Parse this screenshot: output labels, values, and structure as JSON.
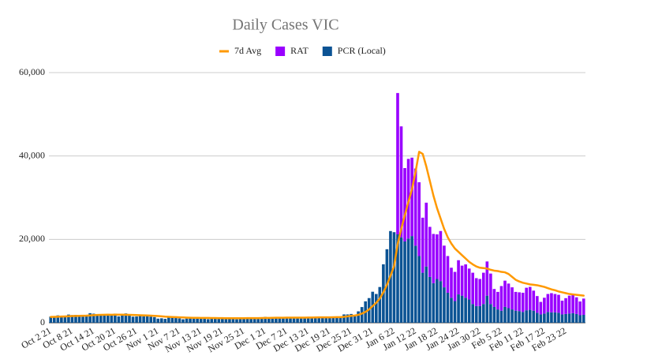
{
  "chart_data": {
    "type": "bar",
    "stacked": true,
    "title": "Daily Cases VIC",
    "categories": [
      "Oct 2 21",
      null,
      null,
      null,
      null,
      null,
      "Oct 8 21",
      null,
      null,
      null,
      null,
      null,
      "Oct 14 21",
      null,
      null,
      null,
      null,
      null,
      "Oct 20 21",
      null,
      null,
      null,
      null,
      null,
      "Oct 26 21",
      null,
      null,
      null,
      null,
      null,
      "Nov 1 21",
      null,
      null,
      null,
      null,
      null,
      "Nov 7 21",
      null,
      null,
      null,
      null,
      null,
      "Nov 13 21",
      null,
      null,
      null,
      null,
      null,
      "Nov 19 21",
      null,
      null,
      null,
      null,
      null,
      "Nov 25 21",
      null,
      null,
      null,
      null,
      null,
      "Dec 1 21",
      null,
      null,
      null,
      null,
      null,
      "Dec 7 21",
      null,
      null,
      null,
      null,
      null,
      "Dec 13 21",
      null,
      null,
      null,
      null,
      null,
      "Dec 19 21",
      null,
      null,
      null,
      null,
      null,
      "Dec 25 21",
      null,
      null,
      null,
      null,
      null,
      "Dec 31 21",
      null,
      null,
      null,
      null,
      null,
      "Jan 6 22",
      null,
      null,
      null,
      null,
      null,
      "Jan 12 22",
      null,
      null,
      null,
      null,
      null,
      "Jan 18 22",
      null,
      null,
      null,
      null,
      null,
      "Jan 24 22",
      null,
      null,
      null,
      null,
      null,
      "Jan 30 22",
      null,
      null,
      null,
      null,
      null,
      "Feb 5 22",
      null,
      null,
      null,
      null,
      null,
      "Feb 11 22",
      null,
      null,
      null,
      null,
      null,
      "Feb 17 22",
      null,
      null,
      null,
      null,
      null,
      "Feb 23 22",
      null,
      null,
      null,
      null,
      null
    ],
    "series": [
      {
        "name": "7d Avg",
        "type": "line",
        "color": "#ff9900",
        "values": [
          1400,
          1420,
          1450,
          1480,
          1520,
          1560,
          1600,
          1640,
          1660,
          1680,
          1700,
          1760,
          1820,
          1870,
          1900,
          1920,
          1930,
          1920,
          1950,
          1940,
          1930,
          1920,
          1900,
          1870,
          1840,
          1810,
          1780,
          1740,
          1700,
          1650,
          1600,
          1540,
          1470,
          1420,
          1380,
          1340,
          1300,
          1270,
          1240,
          1210,
          1190,
          1180,
          1170,
          1160,
          1150,
          1140,
          1130,
          1120,
          1110,
          1100,
          1100,
          1100,
          1090,
          1090,
          1100,
          1110,
          1120,
          1120,
          1120,
          1130,
          1150,
          1160,
          1180,
          1200,
          1210,
          1210,
          1220,
          1220,
          1230,
          1230,
          1240,
          1240,
          1250,
          1260,
          1270,
          1290,
          1300,
          1310,
          1310,
          1330,
          1340,
          1350,
          1430,
          1530,
          1650,
          1730,
          1900,
          2200,
          2600,
          3200,
          4000,
          4800,
          5800,
          7300,
          9100,
          11300,
          13600,
          18900,
          22500,
          25800,
          29000,
          32000,
          36200,
          41000,
          40500,
          37500,
          34000,
          30500,
          27500,
          25000,
          22500,
          20500,
          19000,
          17800,
          17000,
          16200,
          15400,
          14600,
          14000,
          13500,
          13200,
          13100,
          13000,
          12700,
          12500,
          12400,
          12200,
          12100,
          11700,
          11000,
          10300,
          9900,
          9600,
          9400,
          9200,
          9100,
          9000,
          8800,
          8600,
          8300,
          8000,
          7800,
          7500,
          7300,
          7100,
          6900,
          6800,
          6700,
          6600,
          6500
        ]
      },
      {
        "name": "RAT",
        "type": "bar",
        "color": "#9900ff",
        "values": [
          null,
          null,
          null,
          null,
          null,
          null,
          null,
          null,
          null,
          null,
          null,
          null,
          null,
          null,
          null,
          null,
          null,
          null,
          null,
          null,
          null,
          null,
          null,
          null,
          null,
          null,
          null,
          null,
          null,
          null,
          null,
          null,
          null,
          null,
          null,
          null,
          null,
          null,
          null,
          null,
          null,
          null,
          null,
          null,
          null,
          null,
          null,
          null,
          null,
          null,
          null,
          null,
          null,
          null,
          null,
          null,
          null,
          null,
          null,
          null,
          null,
          null,
          null,
          null,
          null,
          null,
          null,
          null,
          null,
          null,
          null,
          null,
          null,
          null,
          null,
          null,
          null,
          null,
          null,
          null,
          null,
          null,
          null,
          null,
          null,
          null,
          null,
          null,
          null,
          null,
          null,
          null,
          null,
          null,
          null,
          null,
          null,
          33900,
          26600,
          17600,
          19100,
          18800,
          18500,
          17700,
          13200,
          15300,
          12000,
          11800,
          10700,
          12000,
          10000,
          8800,
          7200,
          7000,
          8200,
          7200,
          8000,
          7400,
          7500,
          6700,
          6500,
          7500,
          8200,
          7300,
          4300,
          4200,
          5900,
          6300,
          5900,
          5300,
          4500,
          4500,
          4600,
          5400,
          5500,
          4800,
          4000,
          3000,
          3800,
          4300,
          4600,
          4400,
          4300,
          3300,
          3800,
          4300,
          4500,
          4000,
          3300,
          3900
        ]
      },
      {
        "name": "PCR (Local)",
        "type": "bar",
        "color": "#0b5394",
        "values": [
          1488,
          1377,
          1763,
          1420,
          1638,
          1965,
          1838,
          1890,
          1612,
          1466,
          1571,
          2297,
          2179,
          1993,
          1838,
          1903,
          1749,
          1841,
          2189,
          1534,
          1750,
          2232,
          1935,
          1461,
          1510,
          1923,
          1534,
          1656,
          1471,
          1355,
          989,
          1069,
          941,
          1247,
          1343,
          1126,
          1036,
          833,
          1003,
          1273,
          1362,
          1313,
          1221,
          1035,
          860,
          1007,
          1179,
          1069,
          1034,
          1188,
          1029,
          1145,
          827,
          1026,
          1254,
          1252,
          1130,
          1061,
          918,
          1179,
          1419,
          1232,
          1365,
          1193,
          1112,
          1054,
          1185,
          1312,
          1206,
          1206,
          1218,
          1252,
          1290,
          1189,
          1405,
          1504,
          1405,
          1302,
          1240,
          1510,
          1245,
          1503,
          1999,
          2005,
          2108,
          1608,
          2738,
          3767,
          5137,
          5919,
          7442,
          6900,
          8577,
          14020,
          17636,
          21997,
          21728,
          21200,
          20500,
          19500,
          20200,
          20800,
          18500,
          16000,
          12000,
          13500,
          11000,
          9500,
          10500,
          10000,
          8500,
          7200,
          6000,
          5200,
          6800,
          6500,
          6000,
          5600,
          4500,
          4000,
          4000,
          4500,
          6500,
          4500,
          3800,
          3200,
          2900,
          3800,
          3500,
          3200,
          2900,
          2800,
          2600,
          3000,
          3100,
          2900,
          2400,
          2000,
          2200,
          2600,
          2500,
          2500,
          2400,
          2000,
          2100,
          2200,
          2300,
          2100,
          1800,
          1900
        ]
      }
    ],
    "ylim": [
      0,
      60000
    ],
    "yticks": [
      0,
      {
        "value": 20000,
        "label": "20,000"
      },
      {
        "value": 40000,
        "label": "40,000"
      },
      {
        "value": 60000,
        "label": "60,000"
      }
    ],
    "grid": true,
    "legend": "top"
  }
}
